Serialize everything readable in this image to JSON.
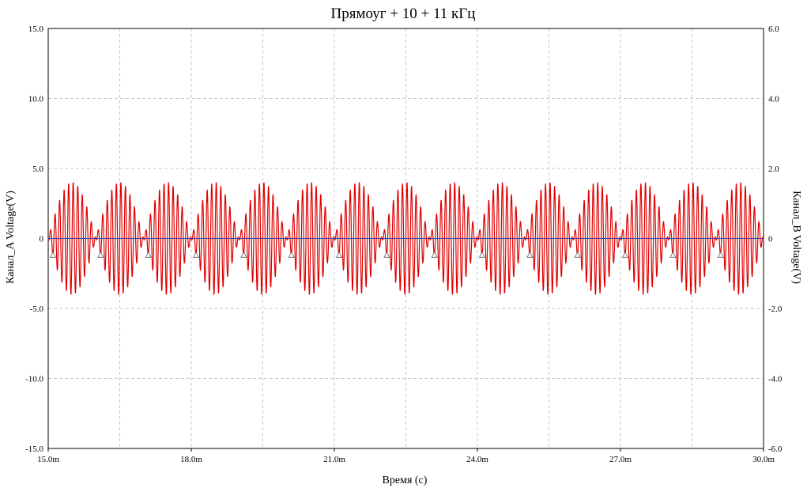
{
  "colors": {
    "background": "#ffffff",
    "grid": "#c8c8c8",
    "axis": "#000000",
    "series_a": "#e00000",
    "series_b": "#4040a0",
    "marker": "#606060"
  },
  "chart_data": {
    "type": "line",
    "title": "Прямоуг + 10 + 11 кГц",
    "xlabel": "Время (с)",
    "ylabel_left": "Канал_A Voltage(V)",
    "ylabel_right": "Канал_B Voltage(V)",
    "xlim": [
      0.015,
      0.03
    ],
    "ylim_left": [
      -15.0,
      15.0
    ],
    "ylim_right": [
      -6.0,
      6.0
    ],
    "grid": true,
    "x_tick_labels": [
      "15.0m",
      "18.0m",
      "21.0m",
      "24.0m",
      "27.0m",
      "30.0m"
    ],
    "x_ticks": [
      0.015,
      0.018,
      0.021,
      0.024,
      0.027,
      0.03
    ],
    "x_minor_grid": [
      0.0165,
      0.0195,
      0.0225,
      0.0255,
      0.0285
    ],
    "y_tick_labels_left": [
      "15.0",
      "10.0",
      "5.0",
      "0",
      "-5.0",
      "-10.0",
      "-15.0"
    ],
    "y_ticks_left": [
      15,
      10,
      5,
      0,
      -5,
      -10,
      -15
    ],
    "y_tick_labels_right": [
      "6.0",
      "4.0",
      "2.0",
      "0",
      "-2.0",
      "-4.0",
      "-6.0"
    ],
    "y_ticks_right": [
      6,
      4,
      2,
      0,
      -2,
      -4,
      -6
    ],
    "series": [
      {
        "name": "Канал_A",
        "axis": "left",
        "components_khz": [
          10,
          11
        ],
        "amplitude_v": 2.0,
        "beat_period_s": 0.001,
        "envelope_peak_v": 4.0,
        "marker_every_s": 0.001,
        "first_marker_s": 0.0151
      },
      {
        "name": "Канал_B",
        "axis": "right",
        "value_v": 0
      }
    ]
  }
}
